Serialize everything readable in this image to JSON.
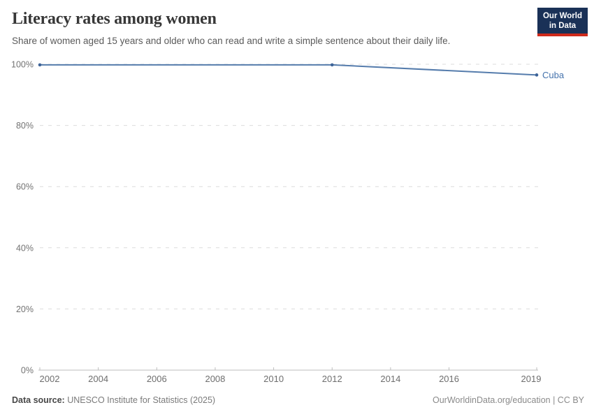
{
  "header": {
    "title": "Literacy rates among women",
    "subtitle": "Share of women aged 15 years and older who can read and write a simple sentence about their daily life."
  },
  "logo": {
    "line1": "Our World",
    "line2": "in Data",
    "bg_color": "#1a3157",
    "bar_color": "#cf2a1b"
  },
  "chart_data": {
    "type": "line",
    "title": "Literacy rates among women",
    "subtitle": "Share of women aged 15 years and older who can read and write a simple sentence about their daily life.",
    "x": [
      2002,
      2012,
      2019
    ],
    "series": [
      {
        "name": "Cuba",
        "values": [
          99.8,
          99.8,
          96.5
        ],
        "color": "#557cac",
        "dot_color": "#3d6398",
        "label_color": "#4573ad"
      }
    ],
    "xlim": [
      2002,
      2019
    ],
    "ylim": [
      0,
      100
    ],
    "xticks": [
      2002,
      2004,
      2006,
      2008,
      2010,
      2012,
      2014,
      2016,
      2019
    ],
    "yticks": [
      0,
      20,
      40,
      60,
      80,
      100
    ],
    "ytick_suffix": "%",
    "grid": "horizontal-dashed",
    "legend_position": "line-end-label"
  },
  "footer": {
    "source_label": "Data source:",
    "source_value": " UNESCO Institute for Statistics (2025)",
    "attribution": "OurWorldinData.org/education | CC BY"
  }
}
